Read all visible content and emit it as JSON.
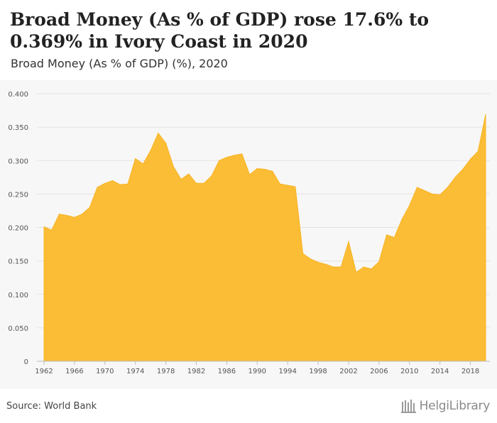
{
  "header": {
    "title": "Broad Money (As % of GDP) rose 17.6% to 0.369% in Ivory Coast in 2020",
    "subtitle": "Broad Money (As % of GDP) (%), 2020"
  },
  "footer": {
    "source": "Source: World Bank",
    "brand": "HelgiLibrary"
  },
  "colors": {
    "area_fill": "#fbbd36",
    "area_stroke": "#f8b526",
    "grid": "#e3e3e3",
    "plot_bg": "#f7f7f7"
  },
  "chart_data": {
    "type": "area",
    "title": "Broad Money (As % of GDP) rose 17.6% to 0.369% in Ivory Coast in 2020",
    "subtitle": "Broad Money (As % of GDP) (%), 2020",
    "xlabel": "",
    "ylabel": "",
    "ylim": [
      0,
      0.4
    ],
    "yticks": [
      "0",
      "0.050",
      "0.100",
      "0.150",
      "0.200",
      "0.250",
      "0.300",
      "0.350",
      "0.400"
    ],
    "xticks": [
      1962,
      1966,
      1970,
      1974,
      1978,
      1982,
      1986,
      1990,
      1994,
      1998,
      2002,
      2006,
      2010,
      2014,
      2018
    ],
    "grid": true,
    "x": [
      1962,
      1963,
      1964,
      1965,
      1966,
      1967,
      1968,
      1969,
      1970,
      1971,
      1972,
      1973,
      1974,
      1975,
      1976,
      1977,
      1978,
      1979,
      1980,
      1981,
      1982,
      1983,
      1984,
      1985,
      1986,
      1987,
      1988,
      1989,
      1990,
      1991,
      1992,
      1993,
      1994,
      1995,
      1996,
      1997,
      1998,
      1999,
      2000,
      2001,
      2002,
      2003,
      2004,
      2005,
      2006,
      2007,
      2008,
      2009,
      2010,
      2011,
      2012,
      2013,
      2014,
      2015,
      2016,
      2017,
      2018,
      2019,
      2020
    ],
    "values": [
      0.201,
      0.196,
      0.22,
      0.218,
      0.215,
      0.22,
      0.23,
      0.26,
      0.266,
      0.27,
      0.264,
      0.265,
      0.303,
      0.295,
      0.315,
      0.341,
      0.326,
      0.291,
      0.272,
      0.28,
      0.266,
      0.266,
      0.277,
      0.3,
      0.305,
      0.308,
      0.31,
      0.279,
      0.288,
      0.287,
      0.284,
      0.265,
      0.263,
      0.261,
      0.161,
      0.153,
      0.148,
      0.145,
      0.141,
      0.141,
      0.179,
      0.133,
      0.141,
      0.138,
      0.149,
      0.189,
      0.185,
      0.212,
      0.233,
      0.26,
      0.255,
      0.25,
      0.249,
      0.26,
      0.275,
      0.287,
      0.302,
      0.314,
      0.369
    ]
  }
}
